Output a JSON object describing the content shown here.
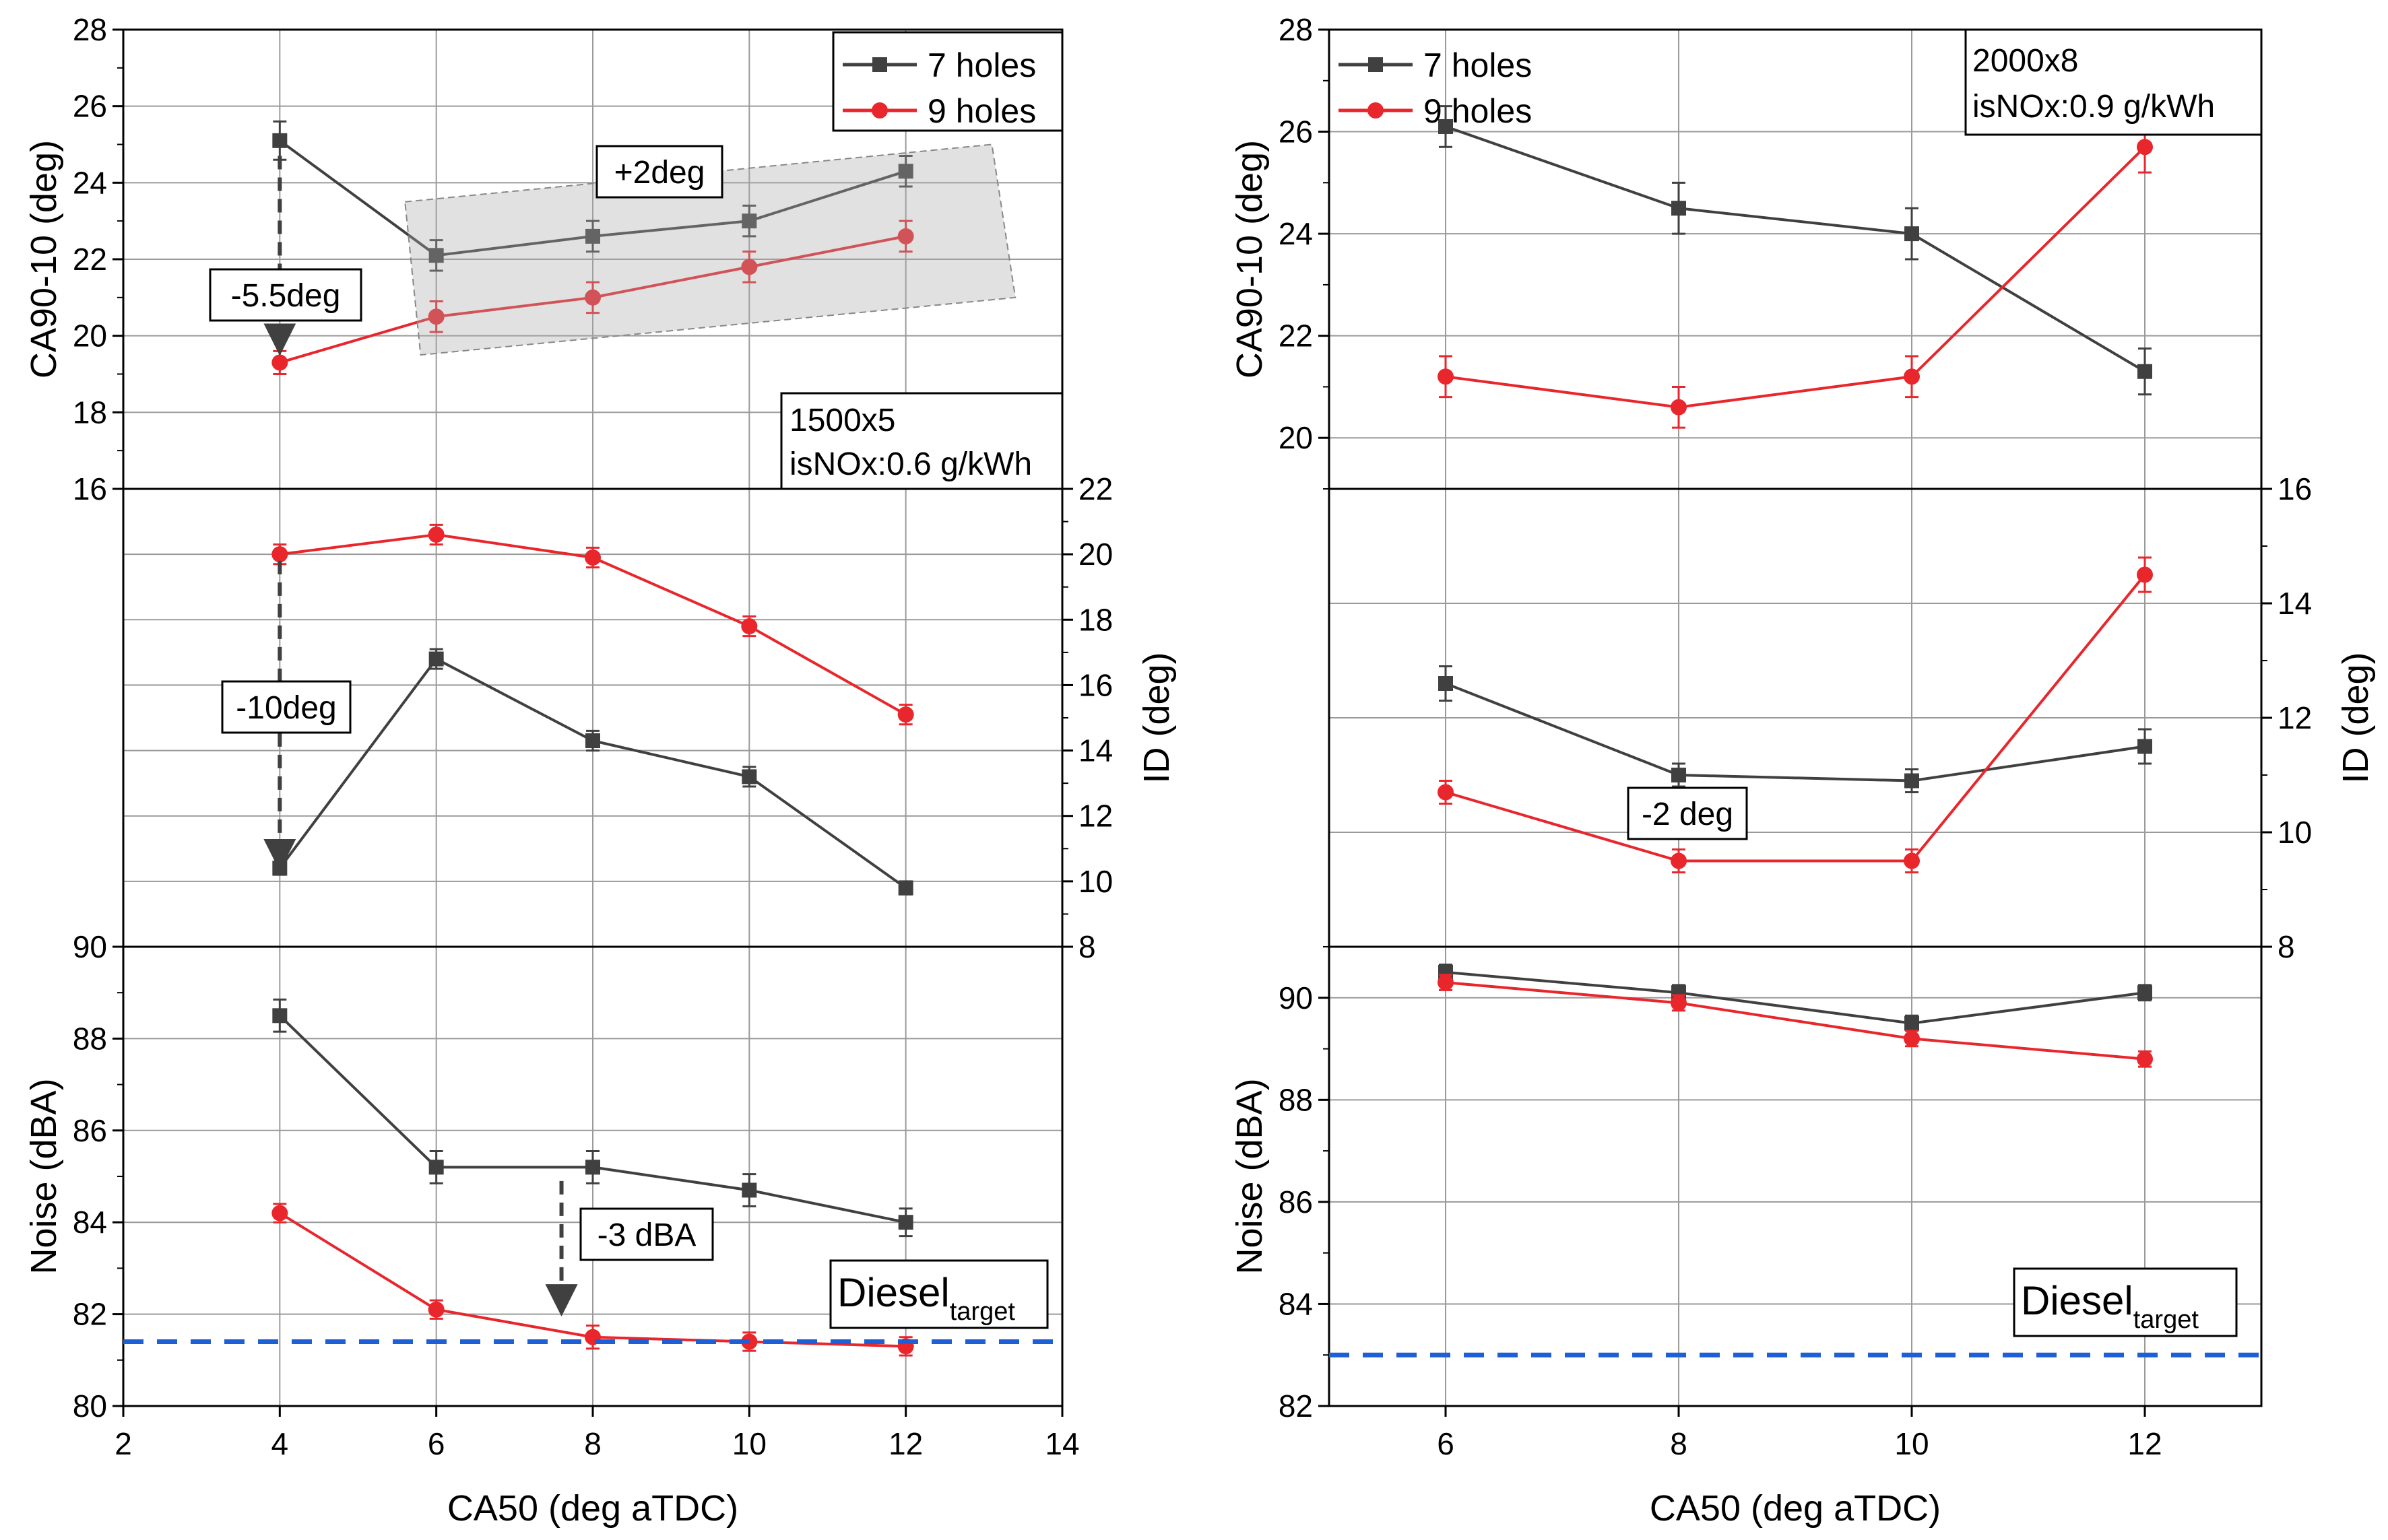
{
  "chart_data": [
    {
      "type": "line",
      "panel": "left",
      "title": "",
      "xlabel": "CA50 (deg aTDC)",
      "xlim": [
        2,
        14
      ],
      "x_ticks": [
        2,
        4,
        6,
        8,
        10,
        12,
        14
      ],
      "x_tick_labels": [
        "2",
        "4",
        "6",
        "8",
        "10",
        "12",
        "14"
      ],
      "x": [
        4,
        6,
        8,
        10,
        12
      ],
      "grid": true,
      "series_names": [
        "7 holes",
        "9 holes"
      ],
      "series_colors": [
        "#404040",
        "#e8262c"
      ],
      "subplots": [
        {
          "id": "left-top",
          "ylabel": "CA90-10 (deg)",
          "ylim": [
            16,
            28
          ],
          "y_ticks": [
            16,
            18,
            20,
            22,
            24,
            26,
            28
          ],
          "y_tick_labels": [
            "16",
            "18",
            "20",
            "22",
            "24",
            "26",
            "28"
          ],
          "y_axis_side": "left",
          "series": [
            {
              "name": "7 holes",
              "values": [
                25.1,
                22.1,
                22.6,
                23.0,
                24.3
              ],
              "errors": [
                0.5,
                0.4,
                0.4,
                0.4,
                0.4
              ]
            },
            {
              "name": "9 holes",
              "values": [
                19.3,
                20.5,
                21.0,
                21.8,
                22.6
              ],
              "errors": [
                0.3,
                0.4,
                0.4,
                0.4,
                0.4
              ]
            }
          ],
          "legend": {
            "location": "top-right",
            "labels": [
              "7 holes",
              "9 holes"
            ]
          },
          "annotations": {
            "down_arrow": "-5.5deg",
            "shaded_box": "+2deg",
            "condition_line1": "1500x5",
            "condition_line2": "isNOx:0.6 g/kWh"
          }
        },
        {
          "id": "left-mid",
          "ylabel": "ID (deg)",
          "ylim": [
            8,
            22
          ],
          "y_ticks": [
            8,
            10,
            12,
            14,
            16,
            18,
            20,
            22
          ],
          "y_tick_labels": [
            "8",
            "10",
            "12",
            "14",
            "16",
            "18",
            "20",
            "22"
          ],
          "y_axis_side": "right",
          "series": [
            {
              "name": "7 holes",
              "values": [
                10.4,
                16.8,
                14.3,
                13.2,
                9.8
              ],
              "errors": [
                0.2,
                0.3,
                0.3,
                0.3,
                0.2
              ]
            },
            {
              "name": "9 holes",
              "values": [
                20.0,
                20.6,
                19.9,
                17.8,
                15.1
              ],
              "errors": [
                0.3,
                0.3,
                0.3,
                0.3,
                0.3
              ]
            }
          ],
          "annotations": {
            "down_arrow": "-10deg"
          }
        },
        {
          "id": "left-bottom",
          "ylabel": "Noise (dBA)",
          "ylim": [
            80,
            90
          ],
          "y_ticks": [
            80,
            82,
            84,
            86,
            88,
            90
          ],
          "y_tick_labels": [
            "80",
            "82",
            "84",
            "86",
            "88",
            "90"
          ],
          "y_axis_side": "left",
          "series": [
            {
              "name": "7 holes",
              "values": [
                88.5,
                85.2,
                85.2,
                84.7,
                84.0
              ],
              "errors": [
                0.35,
                0.35,
                0.35,
                0.35,
                0.3
              ]
            },
            {
              "name": "9 holes",
              "values": [
                84.2,
                82.1,
                81.5,
                81.4,
                81.3
              ],
              "errors": [
                0.2,
                0.2,
                0.25,
                0.2,
                0.2
              ]
            }
          ],
          "target_line": {
            "value": 81.4,
            "color": "#1f5fd6"
          },
          "annotations": {
            "down_arrow": "-3 dBA",
            "target_label_main": "Diesel",
            "target_label_sub": "target"
          }
        }
      ]
    },
    {
      "type": "line",
      "panel": "right",
      "title": "",
      "xlabel": "CA50 (deg aTDC)",
      "xlim": [
        5,
        13
      ],
      "x_ticks": [
        6,
        8,
        10,
        12
      ],
      "x_tick_labels": [
        "6",
        "8",
        "10",
        "12"
      ],
      "x": [
        6,
        8,
        10,
        12
      ],
      "grid": true,
      "series_names": [
        "7 holes",
        "9 holes"
      ],
      "series_colors": [
        "#404040",
        "#e8262c"
      ],
      "subplots": [
        {
          "id": "right-top",
          "ylabel": "CA90-10 (deg)",
          "ylim": [
            19,
            28
          ],
          "y_ticks": [
            20,
            22,
            24,
            26,
            28
          ],
          "y_tick_labels": [
            "20",
            "22",
            "24",
            "26",
            "28"
          ],
          "y_axis_side": "left",
          "series": [
            {
              "name": "7 holes",
              "values": [
                26.1,
                24.5,
                24.0,
                21.3
              ],
              "errors": [
                0.4,
                0.5,
                0.5,
                0.45
              ]
            },
            {
              "name": "9 holes",
              "values": [
                21.2,
                20.6,
                21.2,
                25.7
              ],
              "errors": [
                0.4,
                0.4,
                0.4,
                0.5
              ]
            }
          ],
          "legend": {
            "location": "top-left",
            "labels": [
              "7 holes",
              "9 holes"
            ]
          },
          "annotations": {
            "condition_line1": "2000x8",
            "condition_line2": "isNOx:0.9 g/kWh"
          }
        },
        {
          "id": "right-mid",
          "ylabel": "ID (deg)",
          "ylim": [
            8,
            16
          ],
          "y_ticks": [
            8,
            10,
            12,
            14,
            16
          ],
          "y_tick_labels": [
            "8",
            "10",
            "12",
            "14",
            "16"
          ],
          "y_axis_side": "right",
          "series": [
            {
              "name": "7 holes",
              "values": [
                12.6,
                11.0,
                10.9,
                11.5
              ],
              "errors": [
                0.3,
                0.2,
                0.2,
                0.3
              ]
            },
            {
              "name": "9 holes",
              "values": [
                10.7,
                9.5,
                9.5,
                14.5
              ],
              "errors": [
                0.2,
                0.2,
                0.2,
                0.3
              ]
            }
          ],
          "annotations": {
            "box_label": "-2 deg"
          }
        },
        {
          "id": "right-bottom",
          "ylabel": "Noise (dBA)",
          "ylim": [
            82,
            91
          ],
          "y_ticks": [
            82,
            84,
            86,
            88,
            90
          ],
          "y_tick_labels": [
            "82",
            "84",
            "86",
            "88",
            "90"
          ],
          "y_axis_side": "left",
          "series": [
            {
              "name": "7 holes",
              "values": [
                90.5,
                90.1,
                89.5,
                90.1
              ],
              "errors": [
                0.15,
                0.15,
                0.15,
                0.15
              ]
            },
            {
              "name": "9 holes",
              "values": [
                90.3,
                89.9,
                89.2,
                88.8
              ],
              "errors": [
                0.15,
                0.15,
                0.15,
                0.15
              ]
            }
          ],
          "target_line": {
            "value": 83.0,
            "color": "#1f5fd6"
          },
          "annotations": {
            "target_label_main": "Diesel",
            "target_label_sub": "target"
          }
        }
      ]
    }
  ]
}
